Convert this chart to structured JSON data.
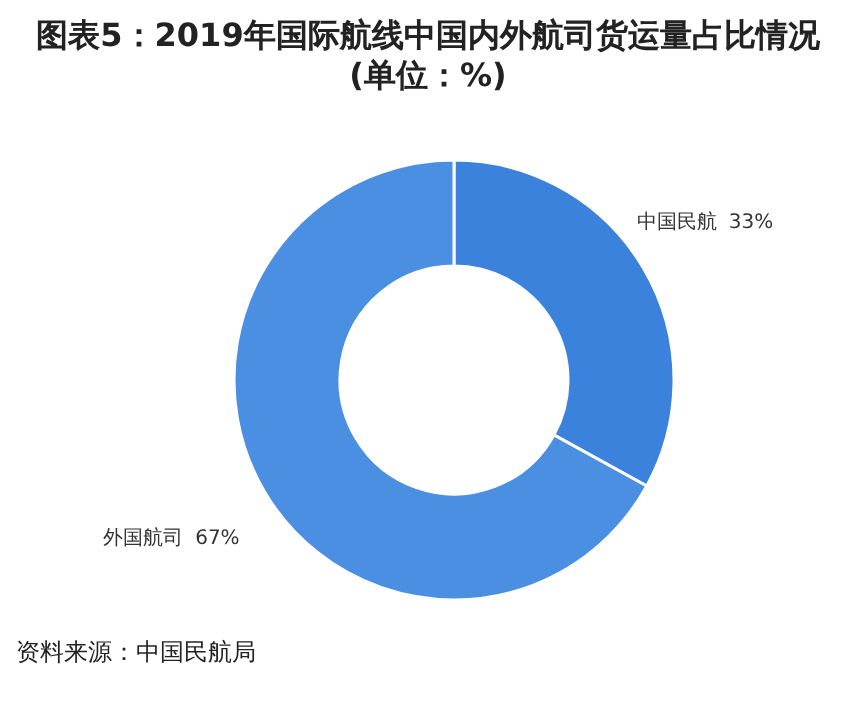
{
  "chart_data": {
    "type": "donut",
    "title": "图表5：2019年国际航线中国内外航司货运量占比情况(单位：%)",
    "categories": [
      "中国民航",
      "外国航司"
    ],
    "values": [
      33,
      67
    ],
    "colors": [
      "#3b82dc",
      "#4b8fe2"
    ],
    "value_labels": [
      "33%",
      "67%"
    ],
    "annotations": [
      "资料来源：中国民航局"
    ]
  }
}
